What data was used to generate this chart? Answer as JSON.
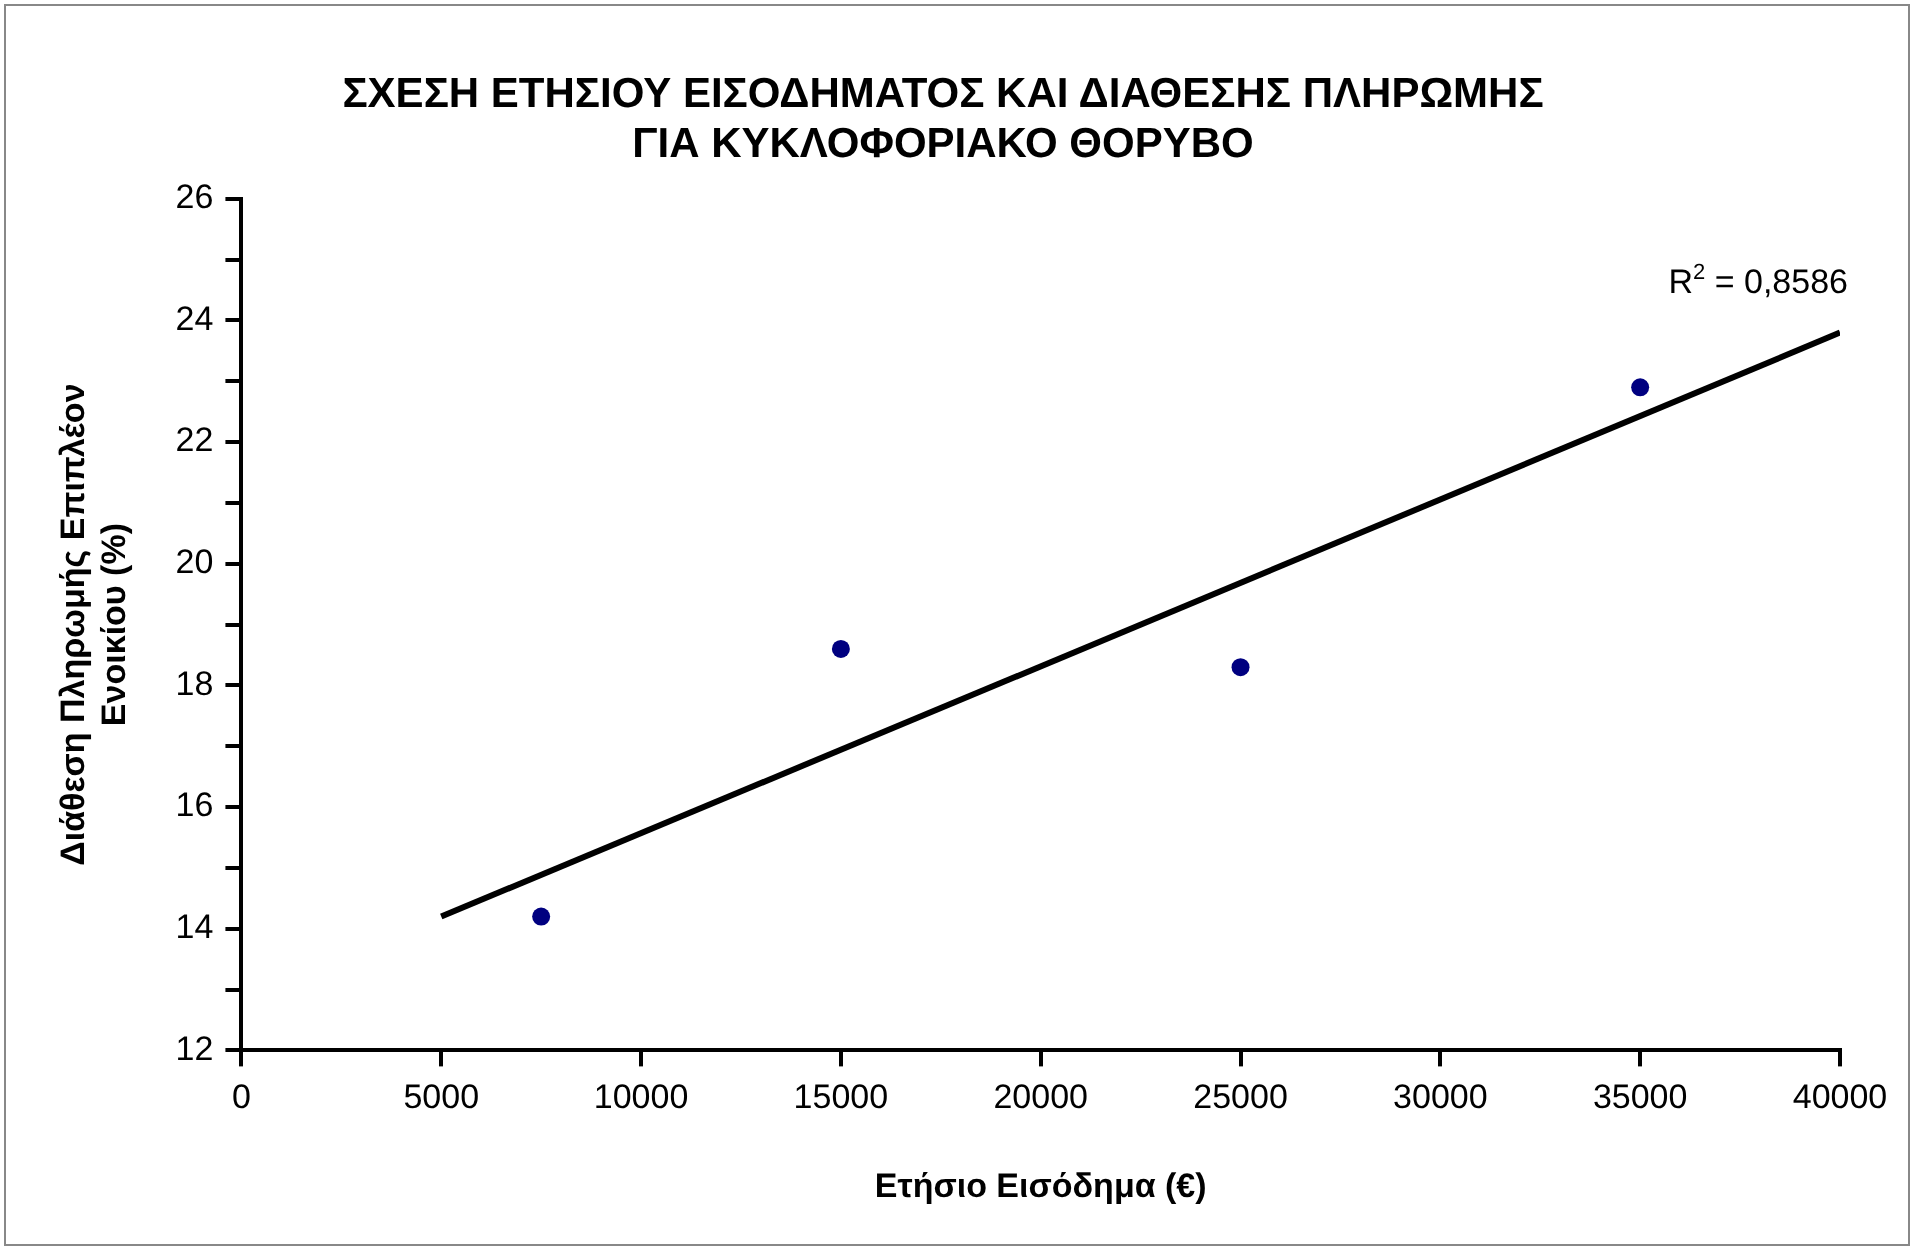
{
  "chart_data": {
    "type": "scatter",
    "title": "ΣΧΕΣΗ ΕΤΗΣΙΟΥ ΕΙΣΟΔΗΜΑΤΟΣ ΚΑΙ ΔΙΑΘΕΣΗΣ ΠΛΗΡΩΜΗΣ\nΓΙΑ ΚΥΚΛΟΦΟΡΙΑΚΟ ΘΟΡΥΒΟ",
    "xlabel": "Ετήσιο Εισόδημα (€)",
    "ylabel": "Διάθεση Πληρωμής Επιπλέον\nΕνοικίου (%)",
    "marker": "circle",
    "series": [
      {
        "color": "#000080",
        "x": [
          7500,
          15000,
          25000,
          35000
        ],
        "values": [
          14.2,
          18.6,
          18.3,
          22.9
        ]
      },
      {
        "type": "line",
        "color": "#000000",
        "marker": "none",
        "x": [
          5000,
          40000
        ],
        "values": [
          14.2,
          23.8
        ]
      }
    ],
    "annotations": [
      {
        "text": "R$^{2}$ = 0,8586",
        "x": 40000,
        "y": 23.8
      }
    ],
    "xlim": [
      0,
      40000
    ],
    "xticks": [
      0,
      5000,
      10000,
      15000,
      20000,
      25000,
      30000,
      35000,
      40000
    ],
    "ylim": [
      12,
      26
    ],
    "yticks": [
      12,
      {
        "value": 13,
        "label": null
      },
      14,
      {
        "value": 15,
        "label": null
      },
      16,
      {
        "value": 17,
        "label": null
      },
      18,
      {
        "value": 19,
        "label": null
      },
      20,
      {
        "value": 21,
        "label": null
      },
      22,
      {
        "value": 23,
        "label": null
      },
      24,
      {
        "value": 25,
        "label": null
      },
      26
    ]
  }
}
